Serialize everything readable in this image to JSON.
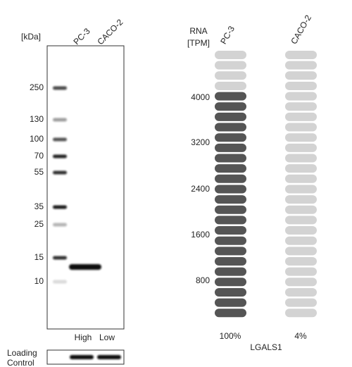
{
  "blot": {
    "unit_label": "[kDa]",
    "lanes": [
      "PC-3",
      "CACO-2"
    ],
    "markers": [
      "250",
      "130",
      "100",
      "70",
      "55",
      "35",
      "25",
      "15",
      "10"
    ],
    "levels": [
      "High",
      "Low"
    ],
    "loading_label": [
      "Loading",
      "Control"
    ]
  },
  "rna": {
    "unit_label": [
      "RNA",
      "[TPM]"
    ],
    "lanes": [
      "PC-3",
      "CACO-2"
    ],
    "scale": [
      "4000",
      "3200",
      "2400",
      "1600",
      "800"
    ],
    "percent": [
      "100%",
      "4%"
    ],
    "gene": "LGALS1"
  }
}
